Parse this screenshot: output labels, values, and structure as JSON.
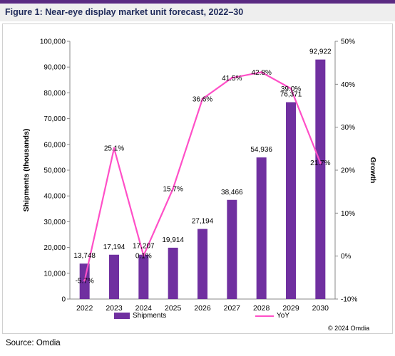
{
  "title": "Figure 1: Near-eye display market unit forecast, 2022–30",
  "source": "Source: Omdia",
  "copyright": "© 2024 Omdia",
  "colors": {
    "bar": "#7030a0",
    "line": "#ff4fc7",
    "header": "#5a2a82",
    "title": "#1f2a5a"
  },
  "chart_data": {
    "type": "bar+line",
    "categories": [
      "2022",
      "2023",
      "2024",
      "2025",
      "2026",
      "2027",
      "2028",
      "2029",
      "2030"
    ],
    "series": [
      {
        "name": "Shipments",
        "type": "bar",
        "axis": "left",
        "values": [
          13748,
          17194,
          17207,
          19914,
          27194,
          38466,
          54936,
          76371,
          92922
        ],
        "labels": [
          "13,748",
          "17,194",
          "17,207",
          "19,914",
          "27,194",
          "38,466",
          "54,936",
          "76,371",
          "92,922"
        ]
      },
      {
        "name": "YoY",
        "type": "line",
        "axis": "right",
        "values": [
          -5.7,
          25.1,
          0.1,
          15.7,
          36.6,
          41.5,
          42.8,
          39.0,
          21.7
        ],
        "labels": [
          "-5.7%",
          "25.1%",
          "0.1%",
          "15.7%",
          "36.6%",
          "41.5%",
          "42.8%",
          "39.0%",
          "21.7%"
        ]
      }
    ],
    "ylabel": "Shipments (thousands)",
    "y2label": "Growth",
    "ylim": [
      0,
      100000
    ],
    "y2lim": [
      -10,
      50
    ],
    "yticks": [
      "0",
      "10,000",
      "20,000",
      "30,000",
      "40,000",
      "50,000",
      "60,000",
      "70,000",
      "80,000",
      "90,000",
      "100,000"
    ],
    "y2ticks": [
      "-10%",
      "0%",
      "10%",
      "20%",
      "30%",
      "40%",
      "50%"
    ],
    "grid": false,
    "legend": "bottom"
  }
}
